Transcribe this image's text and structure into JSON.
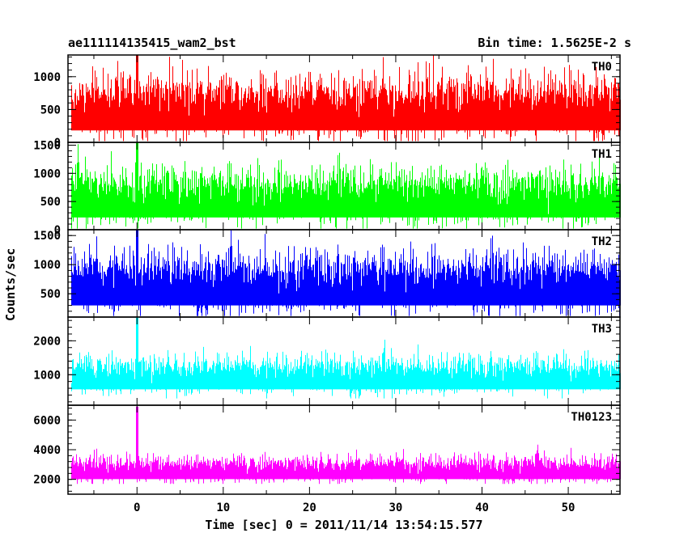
{
  "header": {
    "title": "ae111114135415_wam2_bst",
    "bin_time": "Bin time: 1.5625E-2 s"
  },
  "axes": {
    "ylabel": "Counts/sec",
    "xlabel": "Time [sec] 0 = 2011/11/14 13:54:15.577"
  },
  "chart_data": {
    "type": "line",
    "xlim": [
      -8,
      56
    ],
    "x_range": [
      -8,
      56
    ],
    "x_ticks": [
      0,
      10,
      20,
      30,
      40,
      50
    ],
    "x_tick_labels": [
      "0",
      "10",
      "20",
      "30",
      "40",
      "50"
    ],
    "bin_time_s": 0.015625,
    "series": [
      {
        "name": "TH0",
        "color": "#ff0000",
        "ylim": [
          0,
          1330
        ],
        "y_ticks": [
          0,
          500,
          1000
        ],
        "y_tick_labels": [
          "0",
          "500",
          "1000"
        ],
        "baseline": 550,
        "noise": 230,
        "min": 20,
        "max": 1330
      },
      {
        "name": "TH1",
        "color": "#00ff00",
        "ylim": [
          0,
          1550
        ],
        "y_ticks": [
          0,
          500,
          1000,
          1500
        ],
        "y_tick_labels": [
          "0",
          "500",
          "1000",
          "1500"
        ],
        "baseline": 600,
        "noise": 240,
        "min": 20,
        "max": 1550
      },
      {
        "name": "TH2",
        "color": "#0000ff",
        "ylim": [
          100,
          1600
        ],
        "y_ticks": [
          500,
          1000,
          1500
        ],
        "y_tick_labels": [
          "500",
          "1000",
          "1500"
        ],
        "baseline": 700,
        "noise": 250,
        "min": 120,
        "max": 1600
      },
      {
        "name": "TH3",
        "color": "#00ffff",
        "ylim": [
          100,
          2700
        ],
        "y_ticks": [
          1000,
          2000
        ],
        "y_tick_labels": [
          "1000",
          "2000"
        ],
        "baseline": 1000,
        "noise": 270,
        "min": 300,
        "max": 2700
      },
      {
        "name": "TH0123",
        "color": "#ff00ff",
        "ylim": [
          1000,
          7000
        ],
        "y_ticks": [
          2000,
          4000,
          6000
        ],
        "y_tick_labels": [
          "2000",
          "4000",
          "6000"
        ],
        "baseline": 2700,
        "noise": 430,
        "min": 1700,
        "max": 6900
      }
    ],
    "annotations": [
      "TH0",
      "TH1",
      "TH2",
      "TH3",
      "TH0123"
    ]
  }
}
